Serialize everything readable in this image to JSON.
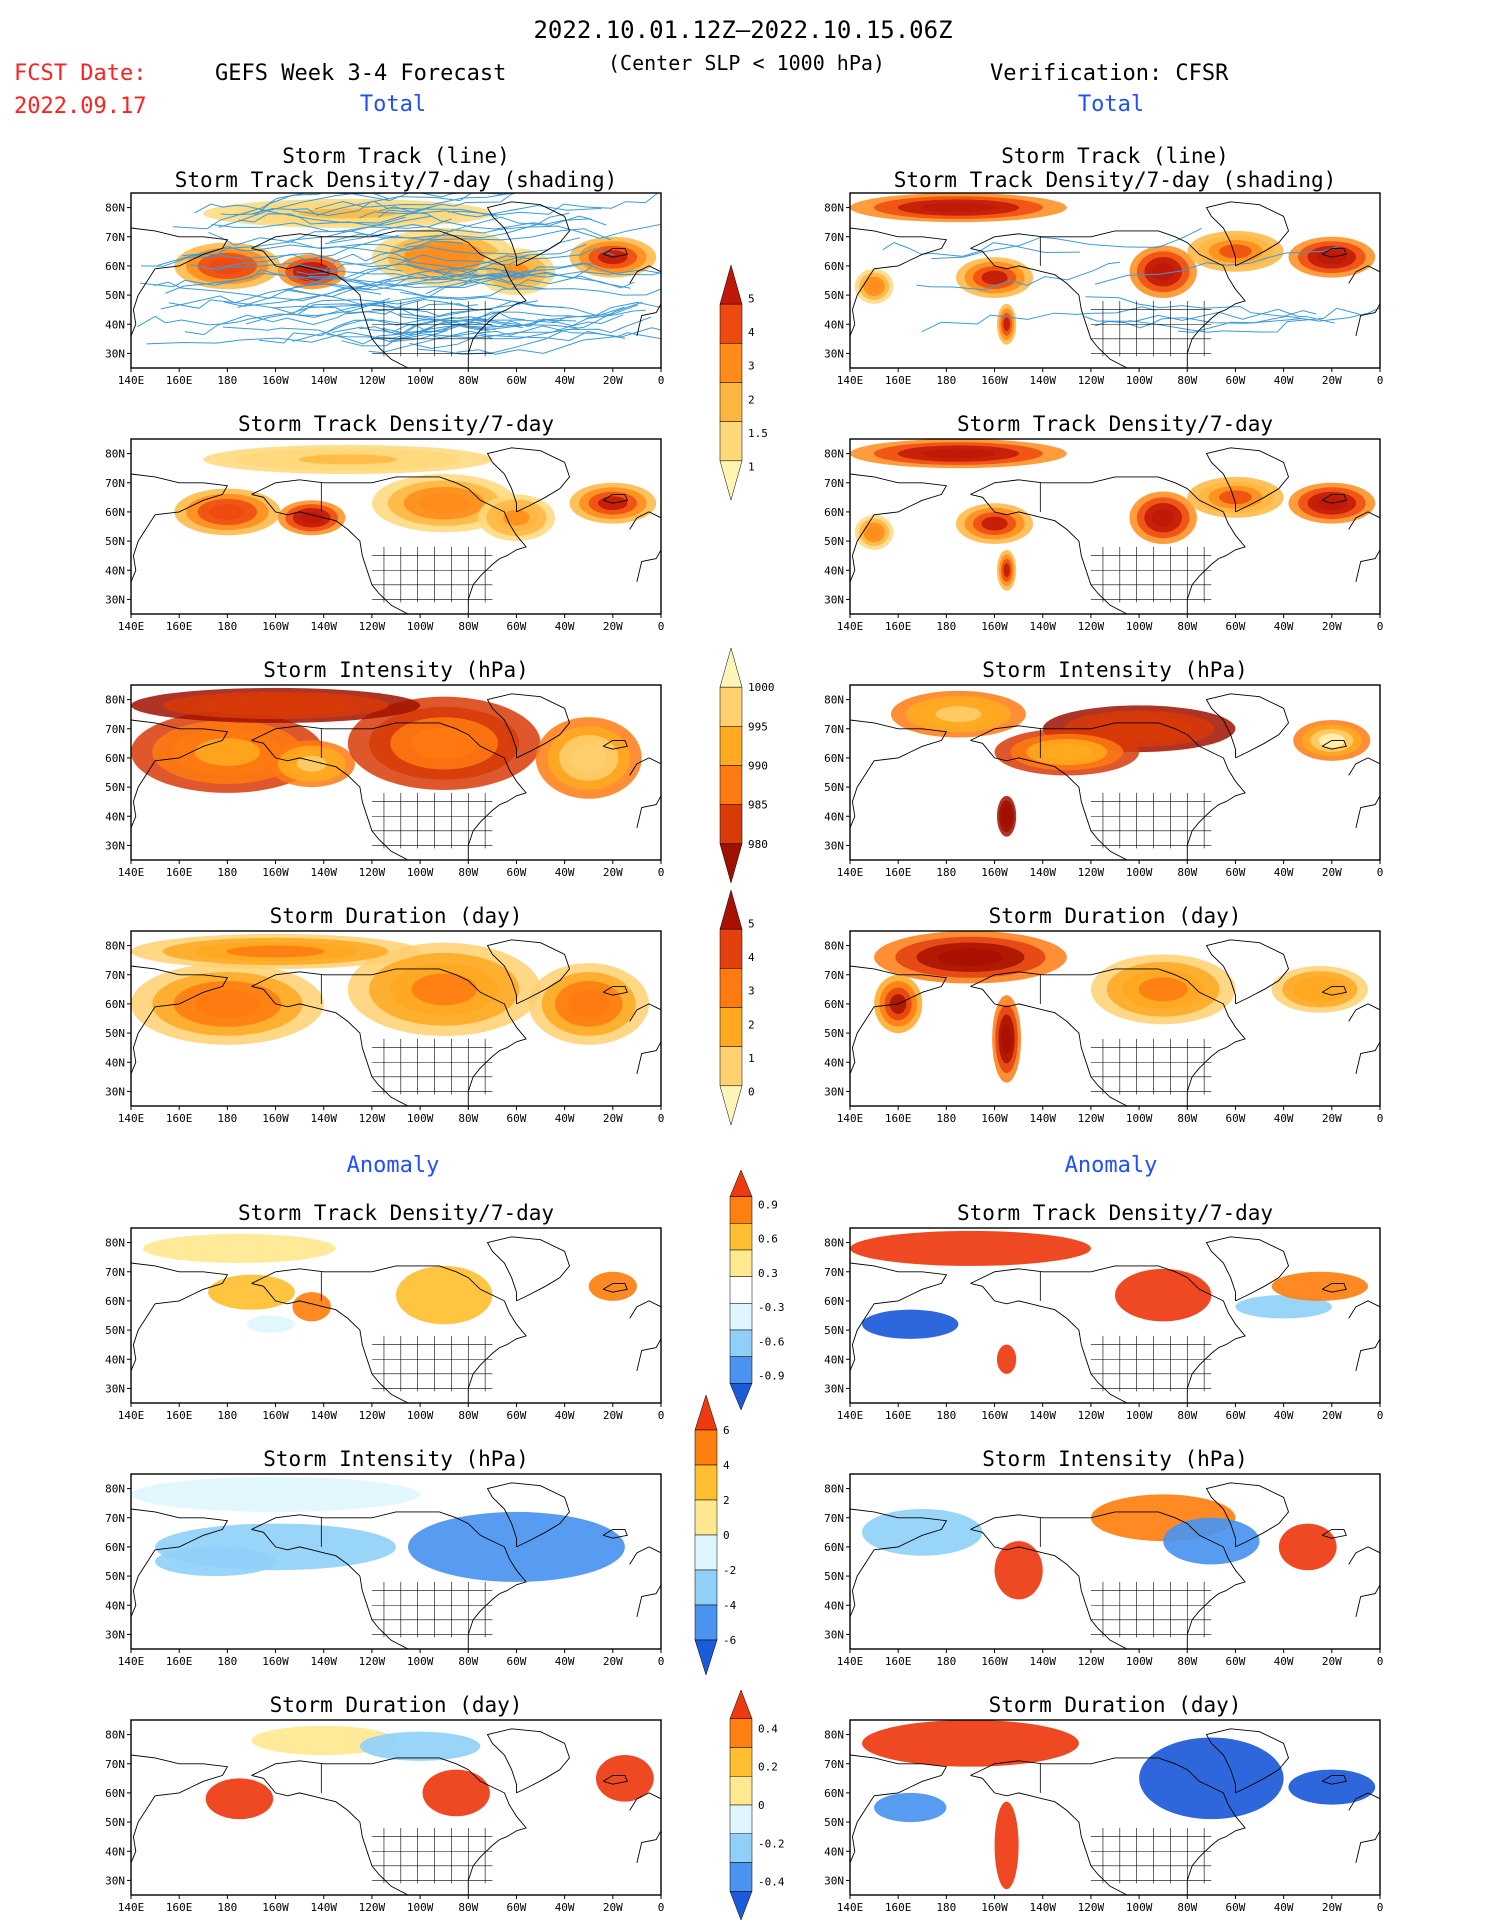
{
  "header": {
    "period": "2022.10.01.12Z–2022.10.15.06Z",
    "fcst_label": "FCST Date:",
    "fcst_date": "2022.09.17",
    "forecast_title": "GEFS Week 3-4 Forecast",
    "condition": "(Center SLP < 1000 hPa)",
    "verification": "Verification: CFSR",
    "total_label": "Total",
    "anomaly_label": "Anomaly"
  },
  "colors": {
    "text_red": "#ff2020",
    "text_blue": "#1f4fff",
    "track_line": "#3a9bdc"
  },
  "axes": {
    "lon_ticks": [
      "140E",
      "160E",
      "180",
      "160W",
      "140W",
      "120W",
      "100W",
      "80W",
      "60W",
      "40W",
      "20W",
      "0"
    ],
    "lat_ticks": [
      "80N",
      "70N",
      "60N",
      "50N",
      "40N",
      "30N"
    ]
  },
  "rows": [
    {
      "title1": "Storm Track (line)",
      "title2": "Storm Track Density/7-day (shading)"
    },
    {
      "title1": "Storm Track Density/7-day",
      "title2": ""
    },
    {
      "title1": "Storm Intensity (hPa)",
      "title2": ""
    },
    {
      "title1": "Storm Duration (day)",
      "title2": ""
    },
    {
      "title1": "Storm Track Density/7-day",
      "title2": ""
    },
    {
      "title1": "Storm Intensity (hPa)",
      "title2": ""
    },
    {
      "title1": "Storm Duration (day)",
      "title2": ""
    }
  ],
  "colorbars": [
    {
      "labels": [
        "1",
        "1.5",
        "2",
        "3",
        "4",
        "5"
      ],
      "colors": [
        "#fff5b0",
        "#ffd87a",
        "#ffb640",
        "#ff8c1a",
        "#ee4a10",
        "#c01808"
      ]
    },
    {
      "labels": [
        "980",
        "985",
        "990",
        "995",
        "1000"
      ],
      "colors": [
        "#a01000",
        "#d83a08",
        "#ff7a10",
        "#ffaa20",
        "#ffd070",
        "#fff5b8"
      ]
    },
    {
      "labels": [
        "0",
        "1",
        "2",
        "3",
        "4",
        "5"
      ],
      "colors": [
        "#fff5b8",
        "#ffd070",
        "#ffa820",
        "#ff7a10",
        "#e34010",
        "#a81000"
      ]
    },
    {
      "labels": [
        "-0.9",
        "-0.6",
        "-0.3",
        "0.3",
        "0.6",
        "0.9"
      ],
      "colors": [
        "#1c5ad8",
        "#4a94f0",
        "#90d0f8",
        "#dff6ff",
        "#ffffff",
        "#ffe890",
        "#ffbf30",
        "#ff8010",
        "#ee3a10"
      ]
    },
    {
      "labels": [
        "-6",
        "-4",
        "-2",
        "0",
        "2",
        "4",
        "6"
      ],
      "colors": [
        "#1c5ad8",
        "#4a94f0",
        "#90d0f8",
        "#dff6ff",
        "#ffe890",
        "#ffbf30",
        "#ff8010",
        "#ee3a10"
      ]
    },
    {
      "labels": [
        "-0.4",
        "-0.2",
        "0",
        "0.2",
        "0.4"
      ],
      "colors": [
        "#1c5ad8",
        "#4a94f0",
        "#90d0f8",
        "#dff6ff",
        "#ffe890",
        "#ffbf30",
        "#ff8010",
        "#ee3a10"
      ]
    }
  ],
  "chart_data": {
    "type": "heatmap",
    "panels": 14,
    "lon_range": [
      140,
      360
    ],
    "lat_range": [
      25,
      85
    ]
  }
}
